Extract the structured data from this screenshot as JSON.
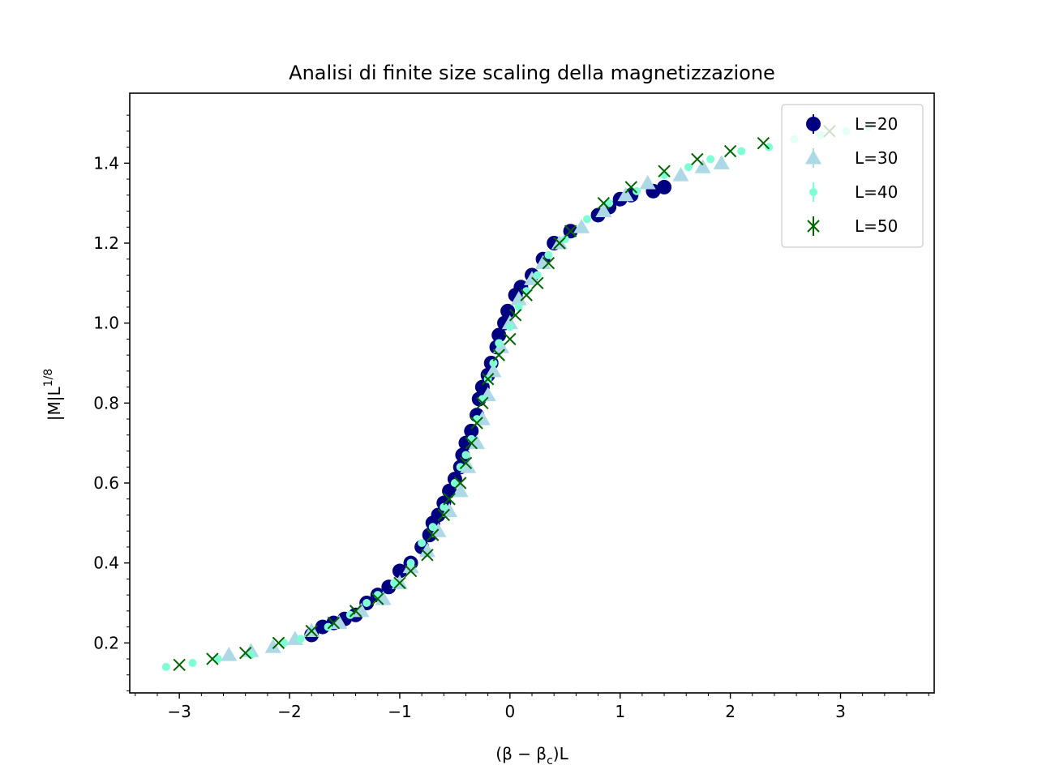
{
  "chart_data": {
    "type": "scatter",
    "title": "Analisi di finite size scaling della magnetizzazione",
    "xlabel_parts": [
      "(β − β",
      "c",
      ")L"
    ],
    "ylabel_parts": [
      "|M|L",
      "1/8"
    ],
    "xlim": [
      -3.45,
      3.85
    ],
    "ylim": [
      0.075,
      1.575
    ],
    "x_ticks": [
      -3,
      -2,
      -1,
      0,
      1,
      2,
      3
    ],
    "x_tick_labels": [
      "−3",
      "−2",
      "−1",
      "0",
      "1",
      "2",
      "3"
    ],
    "y_ticks": [
      0.2,
      0.4,
      0.6,
      0.8,
      1.0,
      1.2,
      1.4
    ],
    "y_tick_labels": [
      "0.2",
      "0.4",
      "0.6",
      "0.8",
      "1.0",
      "1.2",
      "1.4"
    ],
    "grid": false,
    "legend_position": "top-right",
    "series": [
      {
        "name": "L=20",
        "color": "#000080",
        "marker": "circle",
        "points": [
          [
            -1.8,
            0.22
          ],
          [
            -1.7,
            0.24
          ],
          [
            -1.6,
            0.25
          ],
          [
            -1.5,
            0.26
          ],
          [
            -1.4,
            0.27
          ],
          [
            -1.3,
            0.3
          ],
          [
            -1.2,
            0.32
          ],
          [
            -1.1,
            0.34
          ],
          [
            -1.0,
            0.38
          ],
          [
            -0.9,
            0.4
          ],
          [
            -0.8,
            0.44
          ],
          [
            -0.73,
            0.47
          ],
          [
            -0.7,
            0.5
          ],
          [
            -0.65,
            0.52
          ],
          [
            -0.6,
            0.55
          ],
          [
            -0.55,
            0.58
          ],
          [
            -0.5,
            0.61
          ],
          [
            -0.45,
            0.64
          ],
          [
            -0.43,
            0.67
          ],
          [
            -0.4,
            0.7
          ],
          [
            -0.35,
            0.73
          ],
          [
            -0.3,
            0.77
          ],
          [
            -0.28,
            0.81
          ],
          [
            -0.25,
            0.84
          ],
          [
            -0.2,
            0.87
          ],
          [
            -0.17,
            0.9
          ],
          [
            -0.12,
            0.94
          ],
          [
            -0.1,
            0.97
          ],
          [
            -0.05,
            1.0
          ],
          [
            -0.02,
            1.03
          ],
          [
            0.05,
            1.07
          ],
          [
            0.1,
            1.09
          ],
          [
            0.2,
            1.12
          ],
          [
            0.3,
            1.16
          ],
          [
            0.4,
            1.2
          ],
          [
            0.55,
            1.23
          ],
          [
            0.8,
            1.27
          ],
          [
            0.9,
            1.29
          ],
          [
            1.0,
            1.31
          ],
          [
            1.1,
            1.32
          ],
          [
            1.3,
            1.33
          ],
          [
            1.4,
            1.34
          ]
        ]
      },
      {
        "name": "L=30",
        "color": "#add8e6",
        "marker": "triangle",
        "points": [
          [
            -2.55,
            0.17
          ],
          [
            -2.35,
            0.18
          ],
          [
            -2.15,
            0.19
          ],
          [
            -1.95,
            0.21
          ],
          [
            -1.8,
            0.23
          ],
          [
            -1.55,
            0.25
          ],
          [
            -1.35,
            0.28
          ],
          [
            -1.15,
            0.31
          ],
          [
            -1.0,
            0.35
          ],
          [
            -0.9,
            0.39
          ],
          [
            -0.75,
            0.43
          ],
          [
            -0.65,
            0.48
          ],
          [
            -0.55,
            0.53
          ],
          [
            -0.45,
            0.58
          ],
          [
            -0.38,
            0.64
          ],
          [
            -0.3,
            0.7
          ],
          [
            -0.25,
            0.76
          ],
          [
            -0.2,
            0.82
          ],
          [
            -0.15,
            0.88
          ],
          [
            -0.08,
            0.94
          ],
          [
            0.0,
            1.0
          ],
          [
            0.08,
            1.06
          ],
          [
            0.2,
            1.11
          ],
          [
            0.3,
            1.15
          ],
          [
            0.45,
            1.2
          ],
          [
            0.65,
            1.24
          ],
          [
            0.85,
            1.28
          ],
          [
            1.05,
            1.32
          ],
          [
            1.25,
            1.35
          ],
          [
            1.55,
            1.37
          ],
          [
            1.75,
            1.39
          ],
          [
            1.92,
            1.4
          ]
        ]
      },
      {
        "name": "L=40",
        "color": "#7fffd4",
        "marker": "dot",
        "points": [
          [
            -3.12,
            0.14
          ],
          [
            -2.88,
            0.15
          ],
          [
            -2.65,
            0.16
          ],
          [
            -2.35,
            0.17
          ],
          [
            -2.05,
            0.2
          ],
          [
            -1.9,
            0.21
          ],
          [
            -1.65,
            0.24
          ],
          [
            -1.45,
            0.27
          ],
          [
            -1.3,
            0.3
          ],
          [
            -1.2,
            0.32
          ],
          [
            -1.05,
            0.35
          ],
          [
            -0.9,
            0.4
          ],
          [
            -0.8,
            0.45
          ],
          [
            -0.7,
            0.49
          ],
          [
            -0.6,
            0.54
          ],
          [
            -0.5,
            0.6
          ],
          [
            -0.45,
            0.64
          ],
          [
            -0.4,
            0.67
          ],
          [
            -0.35,
            0.71
          ],
          [
            -0.3,
            0.76
          ],
          [
            -0.25,
            0.81
          ],
          [
            -0.2,
            0.86
          ],
          [
            -0.15,
            0.9
          ],
          [
            -0.1,
            0.95
          ],
          [
            0.0,
            0.99
          ],
          [
            0.08,
            1.04
          ],
          [
            0.15,
            1.08
          ],
          [
            0.25,
            1.12
          ],
          [
            0.35,
            1.17
          ],
          [
            0.5,
            1.21
          ],
          [
            0.7,
            1.26
          ],
          [
            0.9,
            1.3
          ],
          [
            1.15,
            1.33
          ],
          [
            1.4,
            1.37
          ],
          [
            1.62,
            1.39
          ],
          [
            1.82,
            1.41
          ],
          [
            2.1,
            1.43
          ],
          [
            2.35,
            1.44
          ],
          [
            2.58,
            1.46
          ],
          [
            2.82,
            1.47
          ],
          [
            3.05,
            1.48
          ],
          [
            3.25,
            1.49
          ]
        ]
      },
      {
        "name": "L=50",
        "color": "#006400",
        "marker": "x",
        "points": [
          [
            -3.0,
            0.145
          ],
          [
            -2.7,
            0.16
          ],
          [
            -2.4,
            0.175
          ],
          [
            -2.1,
            0.2
          ],
          [
            -1.8,
            0.23
          ],
          [
            -1.6,
            0.25
          ],
          [
            -1.4,
            0.28
          ],
          [
            -1.2,
            0.31
          ],
          [
            -1.0,
            0.35
          ],
          [
            -0.9,
            0.38
          ],
          [
            -0.75,
            0.42
          ],
          [
            -0.7,
            0.47
          ],
          [
            -0.6,
            0.52
          ],
          [
            -0.55,
            0.56
          ],
          [
            -0.45,
            0.6
          ],
          [
            -0.4,
            0.65
          ],
          [
            -0.35,
            0.7
          ],
          [
            -0.3,
            0.75
          ],
          [
            -0.25,
            0.8
          ],
          [
            -0.2,
            0.86
          ],
          [
            -0.1,
            0.92
          ],
          [
            0.0,
            0.96
          ],
          [
            0.05,
            1.02
          ],
          [
            0.15,
            1.07
          ],
          [
            0.25,
            1.1
          ],
          [
            0.35,
            1.15
          ],
          [
            0.45,
            1.2
          ],
          [
            0.55,
            1.23
          ],
          [
            0.85,
            1.3
          ],
          [
            1.1,
            1.34
          ],
          [
            1.4,
            1.38
          ],
          [
            1.7,
            1.41
          ],
          [
            2.0,
            1.43
          ],
          [
            2.3,
            1.45
          ],
          [
            2.9,
            1.48
          ]
        ]
      }
    ]
  }
}
